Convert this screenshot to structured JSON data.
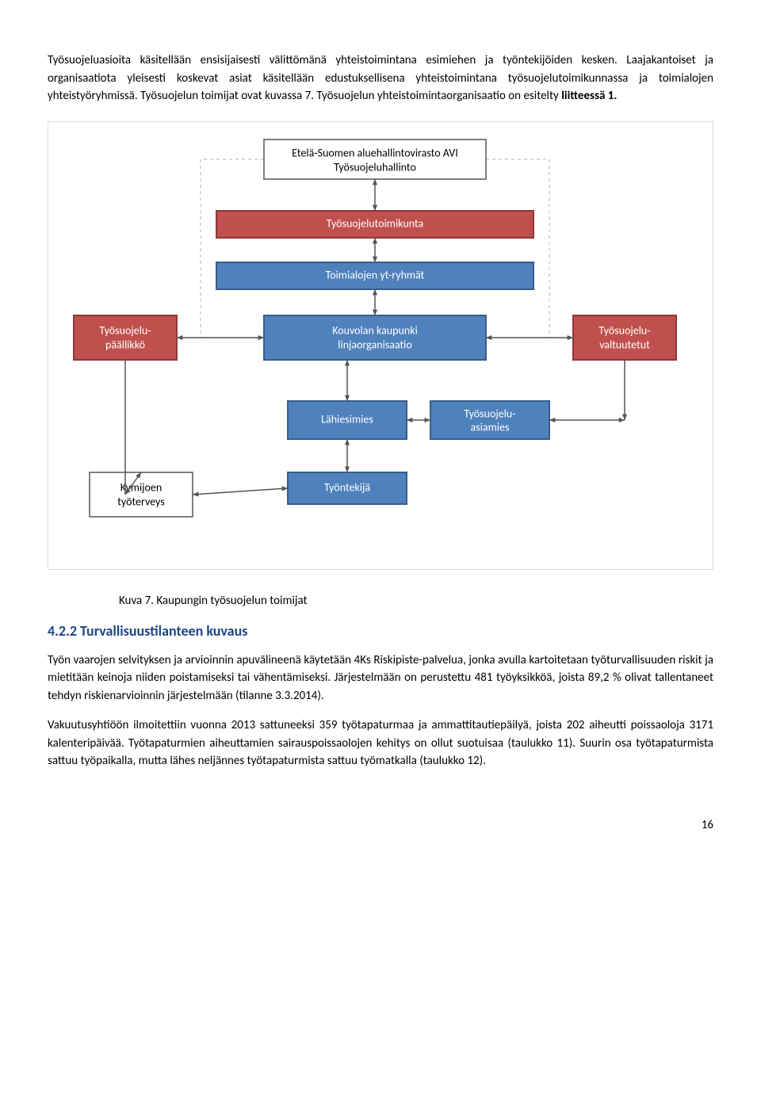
{
  "para1": "Työsuojeluasioita käsitellään ensisijaisesti välittömänä yhteistoimintana esimiehen ja työntekijöiden kesken. Laajakantoiset ja organisaatiota yleisesti koskevat asiat käsitellään edustuksellisena yhteistoimintana työsuojelutoimikunnassa ja toimialojen yhteistyöryhmissä. Työsuojelun toimijat ovat kuvassa 7. Työsuojelun yhteistoimintaorganisaatio on esitelty ",
  "para1_bold": "liitteessä 1.",
  "caption": "Kuva 7. Kaupungin työsuojelun toimijat",
  "heading": "4.2.2 Turvallisuustilanteen kuvaus",
  "para2": "Työn vaarojen selvityksen ja arvioinnin apuvälineenä käytetään 4Ks Riskipiste-palvelua, jonka avulla kartoitetaan työturvallisuuden riskit ja mietitään keinoja niiden poistamiseksi tai vähentämiseksi. Järjestelmään on perustettu 481 työyksikköä, joista 89,2 % olivat tallentaneet tehdyn riskienarvioinnin järjestelmään (tilanne 3.3.2014).",
  "para3": "Vakuutusyhtiöön ilmoitettiin vuonna 2013 sattuneeksi 359 työtapaturmaa ja ammattitautiepäilyä, joista 202 aiheutti poissaoloja 3171 kalenteripäivää. Työtapaturmien aiheuttamien sairauspoissaolojen kehitys on ollut suotuisaa (taulukko 11). Suurin osa työtapaturmista sattuu työpaikalla, mutta lähes neljännes työtapaturmista sattuu työmatkalla (taulukko 12).",
  "pagenum": "16",
  "diagram": {
    "colors": {
      "red_fill": "#c0504d",
      "red_border": "#8b3a38",
      "blue_fill": "#4f81bd",
      "blue_border": "#385d8a",
      "white_fill": "#ffffff",
      "gray_border": "#7f7f7f",
      "conn": "#555555",
      "dash": "#b0b0b0"
    },
    "nodes": {
      "avi1": "Etelä-Suomen aluehallintovirasto AVI",
      "avi2": "Työsuojeluhallinto",
      "toimikunta": "Työsuojelutoimikunta",
      "yt": "Toimialojen yt-ryhmät",
      "paallikko1": "Työsuojelu-",
      "paallikko2": "päällikkö",
      "kaupunki1": "Kouvolan kaupunki",
      "kaupunki2": "linjaorganisaatio",
      "valtuutetut1": "Työsuojelu-",
      "valtuutetut2": "valtuutetut",
      "lahiesimies": "Lähiesimies",
      "asiamies1": "Työsuojelu-",
      "asiamies2": "asiamies",
      "tyontekija": "Työntekijä",
      "kymi1": "Kymijoen",
      "kymi2": "työterveys"
    }
  }
}
